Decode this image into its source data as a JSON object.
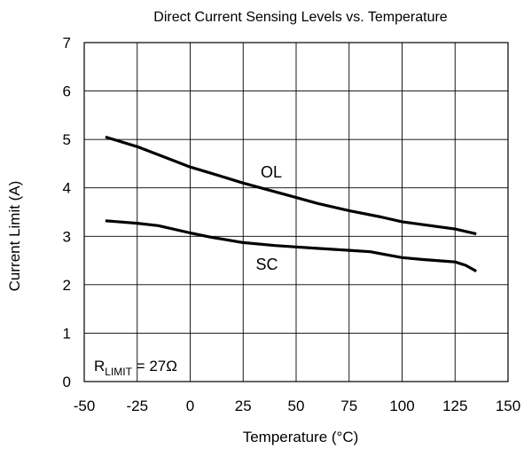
{
  "chart_data": {
    "type": "line",
    "title": "Direct Current Sensing Levels vs. Temperature",
    "xlabel": "Temperature (°C)",
    "ylabel": "Current Limit (A)",
    "xlim": [
      -50,
      150
    ],
    "ylim": [
      0,
      7
    ],
    "xticks": [
      -50,
      -25,
      0,
      25,
      50,
      75,
      100,
      125,
      150
    ],
    "yticks": [
      0,
      1,
      2,
      3,
      4,
      5,
      6,
      7
    ],
    "grid": true,
    "annotation": {
      "main": "R",
      "sub": "LIMIT",
      "rest": " = 27Ω"
    },
    "series": [
      {
        "name": "OL",
        "x": [
          -40,
          -25,
          -10,
          0,
          10,
          25,
          40,
          50,
          60,
          75,
          90,
          100,
          110,
          125,
          135
        ],
        "y": [
          5.05,
          4.85,
          4.6,
          4.43,
          4.3,
          4.1,
          3.92,
          3.8,
          3.68,
          3.53,
          3.4,
          3.3,
          3.24,
          3.15,
          3.05
        ]
      },
      {
        "name": "SC",
        "x": [
          -40,
          -25,
          -15,
          0,
          10,
          25,
          40,
          50,
          60,
          75,
          85,
          90,
          100,
          110,
          125,
          130,
          135
        ],
        "y": [
          3.32,
          3.27,
          3.22,
          3.07,
          2.98,
          2.87,
          2.81,
          2.78,
          2.75,
          2.71,
          2.68,
          2.64,
          2.56,
          2.52,
          2.47,
          2.4,
          2.28
        ]
      }
    ]
  }
}
